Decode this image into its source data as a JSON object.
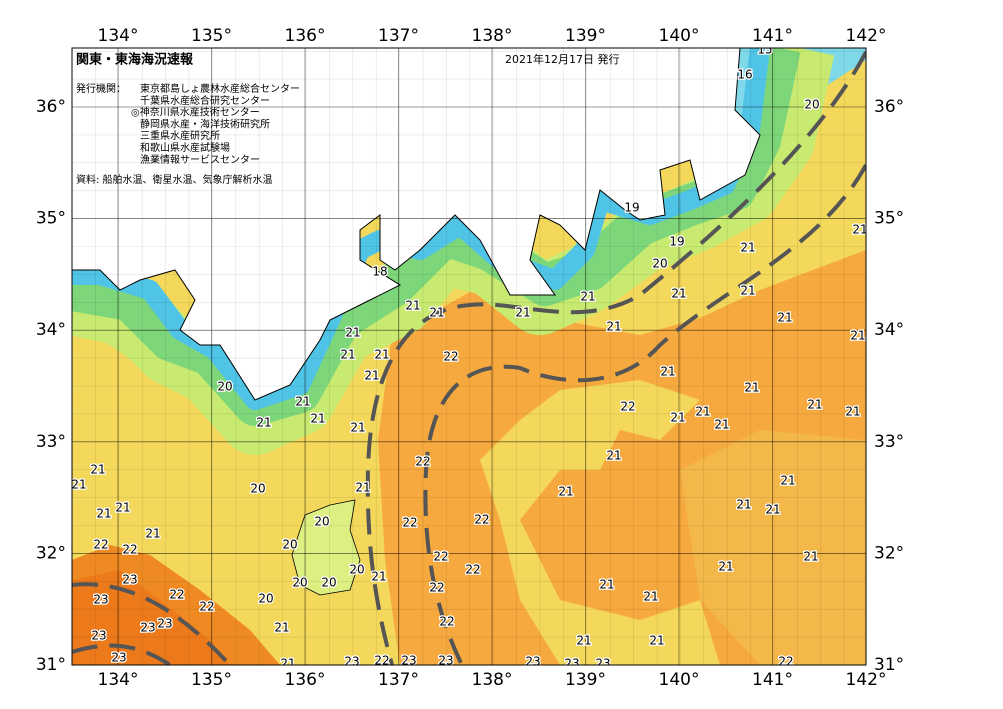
{
  "header": {
    "title": "関東・東海海況速報",
    "date": "2021年12月17日 発行",
    "issuer_label": "発行機関：",
    "issuers": [
      "東京都島しょ農林水産総合センター",
      "千葉県水産総合研究センター",
      "◎神奈川県水産技術センター",
      "静岡県水産・海洋技術研究所",
      "三重県水産研究所",
      "和歌山県水産試験場",
      "漁業情報サービスセンター"
    ],
    "source": "資料: 船舶水温、衛星水温、気象庁解析水温"
  },
  "map": {
    "lon_ticks": [
      {
        "value": 134,
        "label": "134°"
      },
      {
        "value": 135,
        "label": "135°"
      },
      {
        "value": 136,
        "label": "136°"
      },
      {
        "value": 137,
        "label": "137°"
      },
      {
        "value": 138,
        "label": "138°"
      },
      {
        "value": 139,
        "label": "139°"
      },
      {
        "value": 140,
        "label": "140°"
      },
      {
        "value": 141,
        "label": "141°"
      },
      {
        "value": 142,
        "label": "142°"
      }
    ],
    "lat_ticks": [
      {
        "value": 31,
        "label": "31°"
      },
      {
        "value": 32,
        "label": "32°"
      },
      {
        "value": 33,
        "label": "33°"
      },
      {
        "value": 34,
        "label": "34°"
      },
      {
        "value": 35,
        "label": "35°"
      },
      {
        "value": 36,
        "label": "36°"
      }
    ],
    "isotherm_labels": [
      15,
      16,
      20,
      19,
      19,
      20,
      21,
      21,
      21,
      21,
      21,
      21,
      21,
      21,
      18,
      21,
      21,
      21,
      21,
      21,
      21,
      22,
      21,
      20,
      21,
      21,
      21,
      21,
      21,
      21,
      21,
      21,
      22,
      21,
      21,
      21,
      22,
      21,
      21,
      21,
      20,
      21,
      21,
      21,
      21,
      21,
      21,
      22,
      22,
      21,
      21,
      20,
      20,
      22,
      22,
      22,
      22,
      20,
      21,
      21,
      21,
      20,
      20,
      23,
      22,
      21,
      21,
      22,
      22,
      20,
      23,
      22,
      21,
      23,
      23,
      23,
      21,
      21,
      23,
      22,
      23,
      23,
      23,
      23,
      23,
      23,
      21,
      22
    ]
  }
}
